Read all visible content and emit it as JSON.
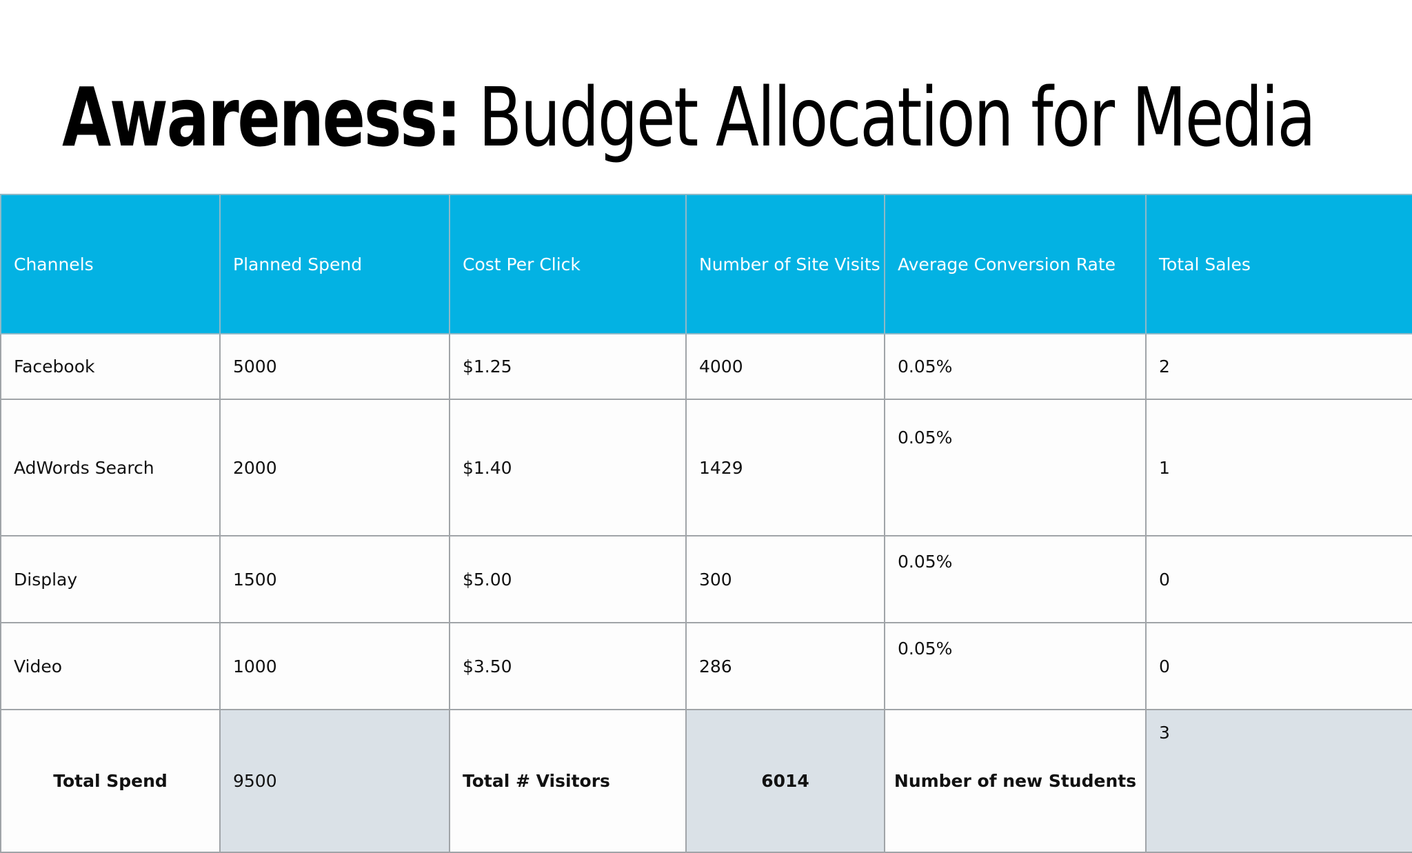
{
  "title": {
    "bold_part": "Awareness:",
    "rest": " Budget Allocation for Media"
  },
  "table": {
    "headers": [
      "Channels",
      "Planned Spend",
      "Cost Per Click",
      "Number of Site Visits",
      "Average Conversion Rate",
      "Total Sales"
    ],
    "rows": [
      [
        "Facebook",
        "5000",
        "$1.25",
        "4000",
        "0.05%",
        "2"
      ],
      [
        "AdWords Search",
        "2000",
        "$1.40",
        "1429",
        "0.05%",
        "1"
      ],
      [
        "Display",
        "1500",
        "$5.00",
        "300",
        "0.05%",
        "0"
      ],
      [
        "Video",
        "1000",
        "$3.50",
        "286",
        "0.05%",
        "0"
      ]
    ],
    "totals": {
      "spend_label": "Total Spend",
      "spend_value": "9500",
      "visitors_label": "Total # Visitors",
      "visitors_value": "6014",
      "students_label": "Number of new Students",
      "students_value": "3"
    }
  },
  "colors": {
    "header_background": "#03b2e3",
    "header_text": "#ffffff",
    "totals_shaded": "#dae1e7",
    "grid_lines": "#a0a4a8"
  }
}
